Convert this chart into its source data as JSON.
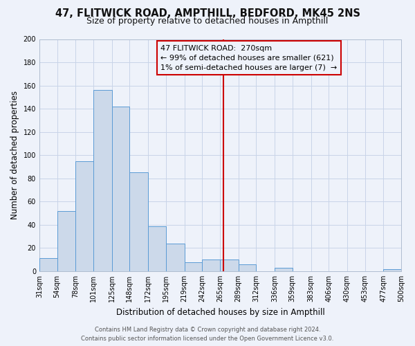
{
  "title": "47, FLITWICK ROAD, AMPTHILL, BEDFORD, MK45 2NS",
  "subtitle": "Size of property relative to detached houses in Ampthill",
  "xlabel": "Distribution of detached houses by size in Ampthill",
  "ylabel": "Number of detached properties",
  "bar_values": [
    11,
    52,
    95,
    156,
    142,
    85,
    39,
    24,
    8,
    10,
    10,
    6,
    0,
    3,
    0,
    0,
    0,
    0,
    0,
    2
  ],
  "bin_edges": [
    31,
    54,
    78,
    101,
    125,
    148,
    172,
    195,
    219,
    242,
    265,
    289,
    312,
    336,
    359,
    383,
    406,
    430,
    453,
    477,
    500
  ],
  "bin_labels": [
    "31sqm",
    "54sqm",
    "78sqm",
    "101sqm",
    "125sqm",
    "148sqm",
    "172sqm",
    "195sqm",
    "219sqm",
    "242sqm",
    "265sqm",
    "289sqm",
    "312sqm",
    "336sqm",
    "359sqm",
    "383sqm",
    "406sqm",
    "430sqm",
    "453sqm",
    "477sqm",
    "500sqm"
  ],
  "bar_color": "#ccd9ea",
  "bar_edge_color": "#5a9bd5",
  "vline_x": 270,
  "vline_color": "#cc0000",
  "annotation_line1": "47 FLITWICK ROAD:  270sqm",
  "annotation_line2": "← 99% of detached houses are smaller (621)",
  "annotation_line3": "1% of semi-detached houses are larger (7)  →",
  "annotation_box_edge_color": "#cc0000",
  "ylim": [
    0,
    200
  ],
  "yticks": [
    0,
    20,
    40,
    60,
    80,
    100,
    120,
    140,
    160,
    180,
    200
  ],
  "grid_color": "#c8d4e8",
  "background_color": "#eef2fa",
  "footer_line1": "Contains HM Land Registry data © Crown copyright and database right 2024.",
  "footer_line2": "Contains public sector information licensed under the Open Government Licence v3.0.",
  "title_fontsize": 10.5,
  "subtitle_fontsize": 9,
  "axis_label_fontsize": 8.5,
  "tick_fontsize": 7,
  "annotation_fontsize": 8,
  "footer_fontsize": 6
}
